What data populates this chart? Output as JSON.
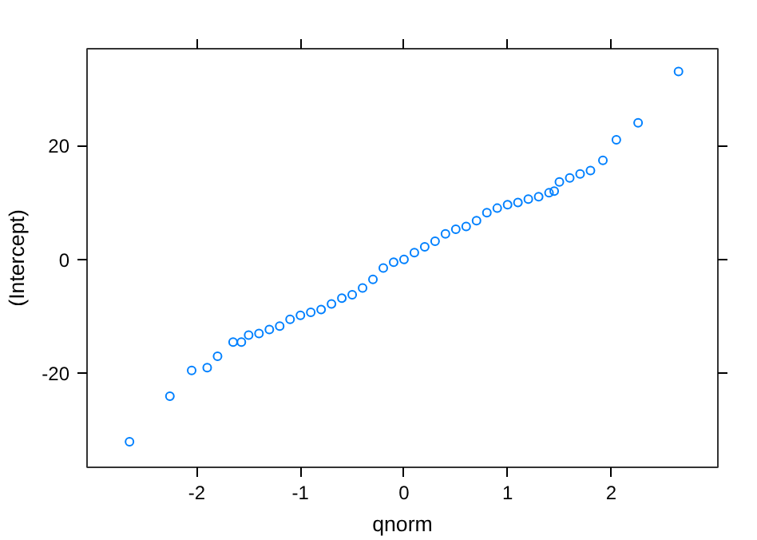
{
  "chart_data": {
    "type": "scatter",
    "xlabel": "qnorm",
    "ylabel": "(Intercept)",
    "x": [
      -2.65,
      -2.26,
      -2.05,
      -1.9,
      -1.8,
      -1.65,
      -1.57,
      -1.5,
      -1.4,
      -1.3,
      -1.2,
      -1.1,
      -1.0,
      -0.9,
      -0.8,
      -0.7,
      -0.6,
      -0.5,
      -0.4,
      -0.3,
      -0.2,
      -0.1,
      0,
      0.1,
      0.2,
      0.3,
      0.4,
      0.5,
      0.6,
      0.7,
      0.8,
      0.9,
      1.0,
      1.1,
      1.2,
      1.3,
      1.4,
      1.45,
      1.5,
      1.6,
      1.7,
      1.8,
      1.92,
      2.05,
      2.26,
      2.65
    ],
    "series": [
      {
        "color": "#0080ff",
        "values": [
          -32,
          -24,
          -19.5,
          -19,
          -17,
          -14.5,
          -14.5,
          -13.3,
          -13,
          -12.3,
          -11.7,
          -10.5,
          -9.8,
          -9.3,
          -8.8,
          -7.8,
          -6.8,
          -6.2,
          -5,
          -3.5,
          -1.5,
          -0.5,
          0,
          1.2,
          2.2,
          3.2,
          4.5,
          5.3,
          5.8,
          6.8,
          8.2,
          9,
          9.6,
          10,
          10.6,
          11,
          11.7,
          12,
          13.6,
          14.3,
          15,
          15.6,
          17.4,
          21,
          24,
          33
        ]
      }
    ],
    "marker": "circle",
    "grid": false,
    "xlim": [
      -3.06,
      3.03
    ],
    "xticks": [
      -2,
      -1,
      0,
      1,
      2
    ],
    "ylim": [
      -36.5,
      37
    ],
    "yticks": [
      -20,
      0,
      20
    ]
  }
}
